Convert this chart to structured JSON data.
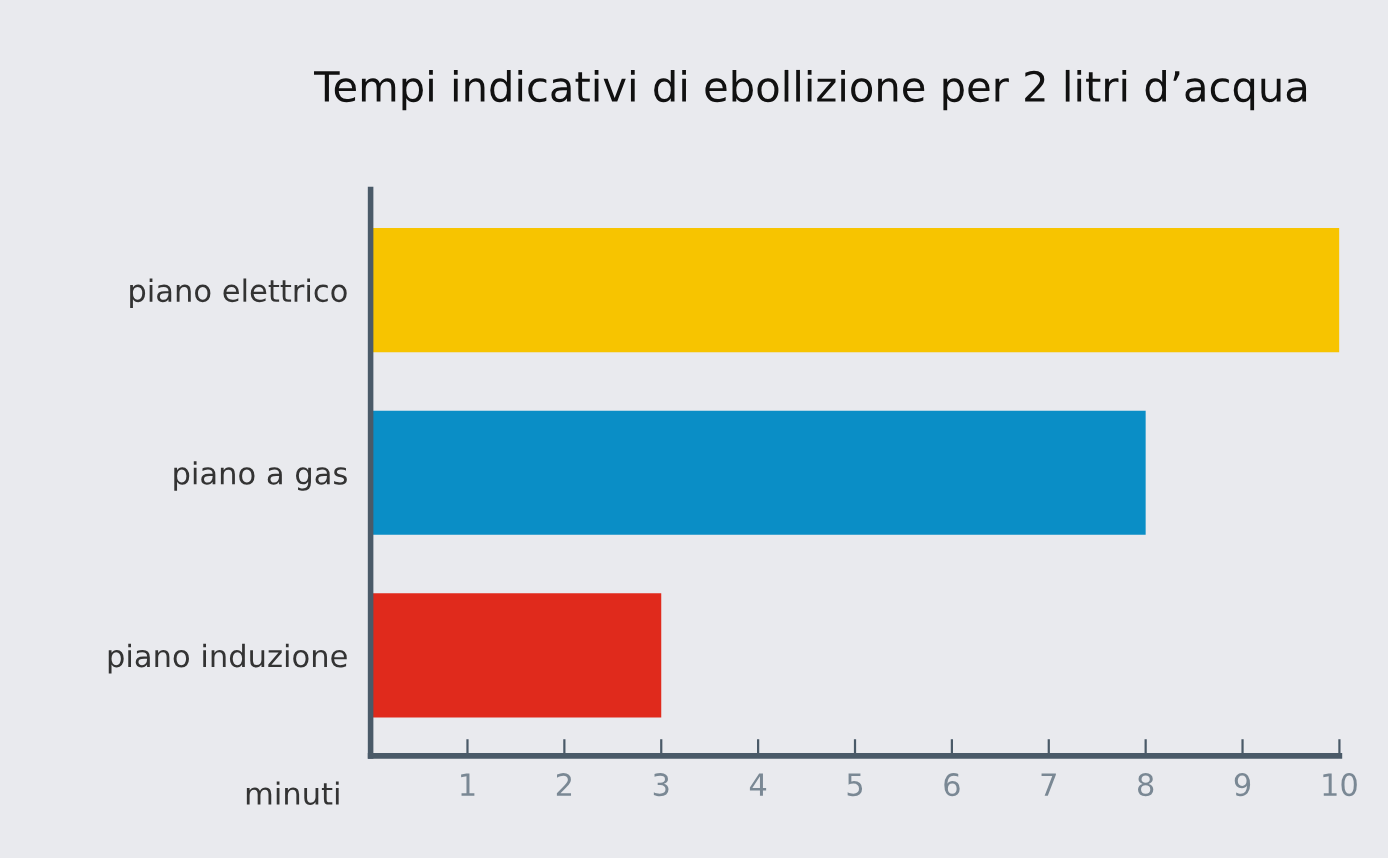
{
  "chart_data": {
    "type": "bar",
    "orientation": "horizontal",
    "title": "Tempi indicativi di ebollizione per 2 litri d’acqua",
    "xlabel": "minuti",
    "categories": [
      "piano elettrico",
      "piano a gas",
      "piano induzione"
    ],
    "values": [
      10,
      8,
      3
    ],
    "colors": [
      "#f7c400",
      "#0a8ec6",
      "#e02a1c"
    ],
    "xlim": [
      0,
      10
    ],
    "xticks": [
      1,
      2,
      3,
      4,
      5,
      6,
      7,
      8,
      9,
      10
    ],
    "grid": false,
    "legend": false
  }
}
